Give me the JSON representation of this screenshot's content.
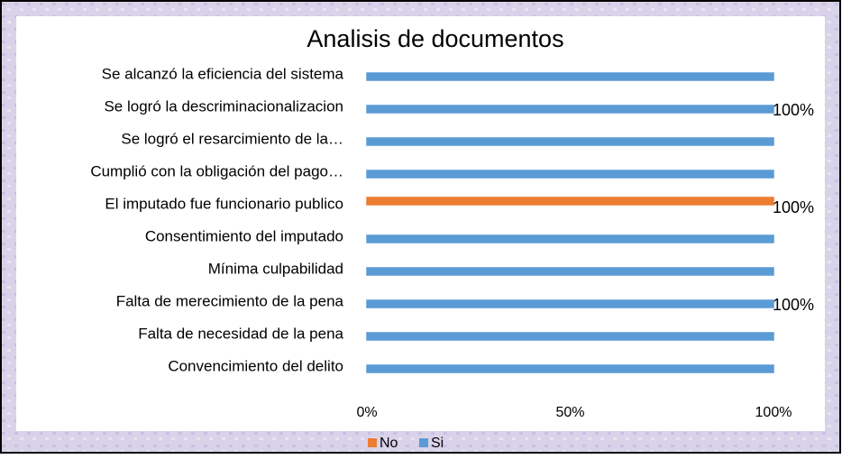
{
  "chart_data": {
    "type": "bar",
    "orientation": "horizontal",
    "title": "Analisis de documentos",
    "categories": [
      "Se alcanzó la eficiencia del sistema",
      "Se logró la descriminacionalizacion",
      "Se logró el resarcimiento de la…",
      "Cumplió con la obligación del pago…",
      "El imputado fue funcionario publico",
      "Consentimiento del imputado",
      "Mínima culpabilidad",
      "Falta de merecimiento de la pena",
      "Falta de necesidad de la pena",
      "Convencimiento del delito"
    ],
    "series": [
      {
        "name": "No",
        "color": "#ed7d31",
        "values": [
          0,
          0,
          0,
          0,
          100,
          0,
          0,
          0,
          0,
          0
        ]
      },
      {
        "name": "Si",
        "color": "#5b9bd5",
        "values": [
          100,
          100,
          100,
          100,
          0,
          100,
          100,
          100,
          100,
          100
        ]
      }
    ],
    "xlim": [
      0,
      100
    ],
    "xticks": [
      {
        "value": 0,
        "label": "0%"
      },
      {
        "value": 50,
        "label": "50%"
      },
      {
        "value": 100,
        "label": "100%"
      }
    ],
    "annotations": [
      "100%",
      "100%",
      "100%"
    ],
    "legend": "bottom"
  }
}
